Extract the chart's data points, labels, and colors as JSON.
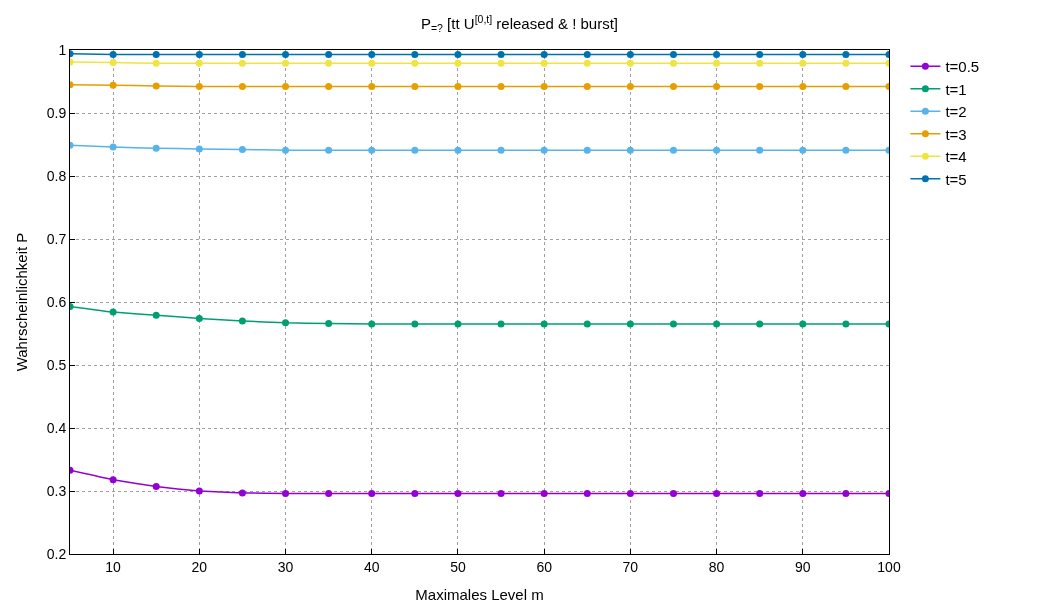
{
  "chart_data": {
    "type": "line",
    "title": "P$_{=?}$ [tt U$^{[0,t]}$ released & ! burst]",
    "xlabel": "Maximales Level m",
    "ylabel": "Wahrscheinlichkeit P",
    "x": [
      5,
      10,
      15,
      20,
      25,
      30,
      35,
      40,
      45,
      50,
      55,
      60,
      65,
      70,
      75,
      80,
      85,
      90,
      95,
      100
    ],
    "series": [
      {
        "name": "t=0.5",
        "color": "#9400d3",
        "values": [
          0.333,
          0.318,
          0.307,
          0.3,
          0.297,
          0.296,
          0.296,
          0.296,
          0.296,
          0.296,
          0.296,
          0.296,
          0.296,
          0.296,
          0.296,
          0.296,
          0.296,
          0.296,
          0.296,
          0.296
        ]
      },
      {
        "name": "t=1",
        "color": "#009e73",
        "values": [
          0.593,
          0.584,
          0.579,
          0.574,
          0.57,
          0.567,
          0.566,
          0.565,
          0.565,
          0.565,
          0.565,
          0.565,
          0.565,
          0.565,
          0.565,
          0.565,
          0.565,
          0.565,
          0.565,
          0.565
        ]
      },
      {
        "name": "t=2",
        "color": "#56b4e9",
        "values": [
          0.849,
          0.846,
          0.844,
          0.843,
          0.842,
          0.841,
          0.841,
          0.841,
          0.841,
          0.841,
          0.841,
          0.841,
          0.841,
          0.841,
          0.841,
          0.841,
          0.841,
          0.841,
          0.841,
          0.841
        ]
      },
      {
        "name": "t=3",
        "color": "#e69f00",
        "values": [
          0.945,
          0.944,
          0.943,
          0.942,
          0.942,
          0.942,
          0.942,
          0.942,
          0.942,
          0.942,
          0.942,
          0.942,
          0.942,
          0.942,
          0.942,
          0.942,
          0.942,
          0.942,
          0.942,
          0.942
        ]
      },
      {
        "name": "t=4",
        "color": "#f0e442",
        "values": [
          0.981,
          0.98,
          0.979,
          0.979,
          0.979,
          0.979,
          0.979,
          0.979,
          0.979,
          0.979,
          0.979,
          0.979,
          0.979,
          0.979,
          0.979,
          0.979,
          0.979,
          0.979,
          0.979,
          0.979
        ]
      },
      {
        "name": "t=5",
        "color": "#0072b2",
        "values": [
          0.994,
          0.993,
          0.993,
          0.993,
          0.993,
          0.993,
          0.993,
          0.993,
          0.993,
          0.993,
          0.993,
          0.993,
          0.993,
          0.993,
          0.993,
          0.993,
          0.993,
          0.993,
          0.993,
          0.993
        ]
      }
    ],
    "xlim": [
      5,
      100
    ],
    "xticks": [
      10,
      20,
      30,
      40,
      50,
      60,
      70,
      80,
      90,
      100
    ],
    "ylim": [
      0.2,
      1
    ],
    "yticks": [
      0.2,
      0.3,
      0.4,
      0.5,
      0.6,
      0.7,
      0.8,
      0.9,
      1
    ],
    "grid": true,
    "legend": "top right",
    "marker": "circle",
    "line_style": "solid"
  }
}
